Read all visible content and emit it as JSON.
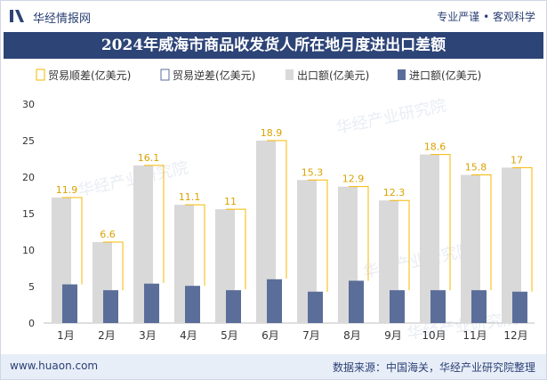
{
  "header": {
    "site_name": "华经情报网",
    "tagline": "专业严谨 • 客观科学"
  },
  "title": "2024年威海市商品收发货人所在地月度进出口差额",
  "footer": {
    "website": "www.huaon.com",
    "source": "数据来源：中国海关，华经产业研究院整理"
  },
  "watermark": "华经产业研究院",
  "colors": {
    "export": "#d9d9d9",
    "import": "#5b6e99",
    "surplus": "#f5b800",
    "deficit": "#5b6e99",
    "header": "#2d4477"
  },
  "chart_data": {
    "type": "bar",
    "categories": [
      "1月",
      "2月",
      "3月",
      "4月",
      "5月",
      "6月",
      "7月",
      "8月",
      "9月",
      "10月",
      "11月",
      "12月"
    ],
    "series": [
      {
        "name": "贸易顺差(亿美元)",
        "values": [
          11.9,
          6.6,
          16.1,
          11.1,
          11,
          18.9,
          15.3,
          12.9,
          12.3,
          18.6,
          15.8,
          17
        ]
      },
      {
        "name": "贸易逆差(亿美元)",
        "values": [
          0,
          0,
          0,
          0,
          0,
          0,
          0,
          0,
          0,
          0,
          0,
          0
        ]
      },
      {
        "name": "出口额(亿美元)",
        "values": [
          17.2,
          11.1,
          21.6,
          16.2,
          15.6,
          25,
          19.6,
          18.7,
          16.8,
          23.1,
          20.3,
          21.3
        ]
      },
      {
        "name": "进口额(亿美元)",
        "values": [
          5.3,
          4.5,
          5.4,
          5.1,
          4.5,
          6.0,
          4.3,
          5.8,
          4.5,
          4.5,
          4.5,
          4.3
        ]
      }
    ],
    "data_labels": [
      "11.9",
      "6.6",
      "16.1",
      "11.1",
      "11",
      "18.9",
      "15.3",
      "12.9",
      "12.3",
      "18.6",
      "15.8",
      "17"
    ],
    "y_ticks": [
      "0",
      "5",
      "10",
      "15",
      "20",
      "25",
      "30"
    ],
    "ylim": [
      0,
      30
    ],
    "legend_position": "top",
    "grid": false
  }
}
